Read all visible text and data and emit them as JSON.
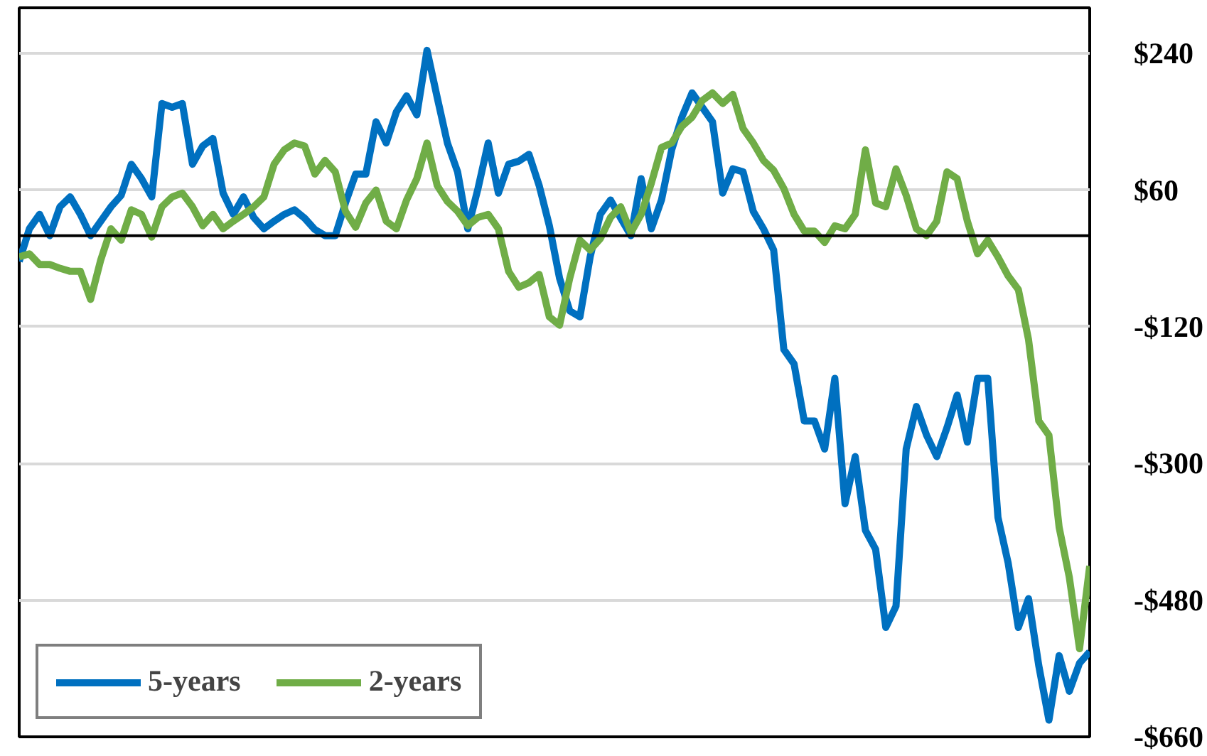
{
  "chart_data": {
    "type": "line",
    "categories": [
      null,
      null,
      null,
      null,
      null,
      null,
      null,
      null,
      null,
      null,
      null,
      null,
      null,
      null,
      null,
      null,
      null,
      null,
      null,
      null,
      null,
      null,
      null,
      null,
      null,
      null,
      null,
      null,
      null,
      null,
      null,
      null,
      null,
      null,
      null,
      null,
      null,
      null,
      null,
      null,
      null,
      null,
      null,
      null,
      null,
      null,
      null,
      null,
      null,
      null,
      null,
      null,
      null,
      null,
      null,
      null,
      null,
      null,
      null,
      null,
      null,
      null,
      null,
      null,
      null,
      null,
      null,
      null,
      null,
      null,
      null,
      null,
      null,
      null,
      null,
      null,
      null,
      null,
      null,
      null,
      null,
      null,
      null,
      null,
      null,
      null,
      null,
      null,
      null,
      null,
      null,
      null,
      null,
      null,
      null,
      null,
      null,
      null,
      null,
      null,
      null,
      null,
      null,
      null,
      null,
      null
    ],
    "series": [
      {
        "name": "5-years",
        "color": "#0070c0",
        "values": [
          -34,
          9,
          28,
          0,
          38,
          51,
          28,
          0,
          19,
          38,
          53,
          94,
          75,
          51,
          174,
          169,
          174,
          94,
          118,
          128,
          56,
          28,
          51,
          24,
          9,
          19,
          28,
          34,
          23,
          8,
          0,
          0,
          43,
          81,
          81,
          150,
          122,
          163,
          184,
          159,
          244,
          182,
          122,
          84,
          9,
          62,
          122,
          56,
          94,
          98,
          107,
          66,
          13,
          -56,
          -99,
          -107,
          -28,
          28,
          47,
          23,
          0,
          75,
          9,
          47,
          113,
          156,
          188,
          169,
          150,
          56,
          88,
          84,
          32,
          9,
          -19,
          -150,
          -169,
          -244,
          -244,
          -281,
          -188,
          -353,
          -291,
          -388,
          -413,
          -516,
          -488,
          -281,
          -225,
          -263,
          -291,
          -253,
          -210,
          -272,
          -188,
          -188,
          -371,
          -431,
          -516,
          -478,
          -566,
          -638,
          -553,
          -600,
          -563,
          -548
        ]
      },
      {
        "name": "2-years",
        "color": "#70ad47",
        "values": [
          -28,
          -24,
          -38,
          -38,
          -43,
          -47,
          -47,
          -84,
          -32,
          9,
          -6,
          34,
          28,
          -2,
          38,
          51,
          56,
          38,
          13,
          28,
          9,
          19,
          28,
          38,
          51,
          94,
          113,
          122,
          118,
          81,
          99,
          84,
          32,
          11,
          43,
          60,
          19,
          9,
          47,
          75,
          122,
          66,
          45,
          32,
          13,
          24,
          28,
          9,
          -47,
          -68,
          -62,
          -51,
          -107,
          -118,
          -56,
          -6,
          -19,
          -4,
          24,
          38,
          4,
          28,
          69,
          116,
          122,
          144,
          156,
          178,
          188,
          174,
          186,
          141,
          122,
          99,
          86,
          62,
          28,
          6,
          6,
          -9,
          13,
          9,
          28,
          113,
          43,
          38,
          88,
          53,
          9,
          0,
          19,
          84,
          75,
          19,
          -24,
          -6,
          -28,
          -53,
          -71,
          -137,
          -244,
          -263,
          -384,
          -450,
          -544,
          -435
        ]
      }
    ],
    "ylim": [
      -660,
      300
    ],
    "yticks": [
      {
        "value": 240,
        "label": "$240"
      },
      {
        "value": 60,
        "label": "$60"
      },
      {
        "value": -120,
        "label": "-$120"
      },
      {
        "value": -300,
        "label": "-$300"
      },
      {
        "value": -480,
        "label": "-$480"
      },
      {
        "value": -660,
        "label": "-$660"
      }
    ],
    "ref_lines": [
      {
        "axis": "y",
        "value": 0,
        "color": "#000000"
      }
    ],
    "grid": "y",
    "legend": "bottom left",
    "tick_labels": "y",
    "line_style": "solid"
  }
}
